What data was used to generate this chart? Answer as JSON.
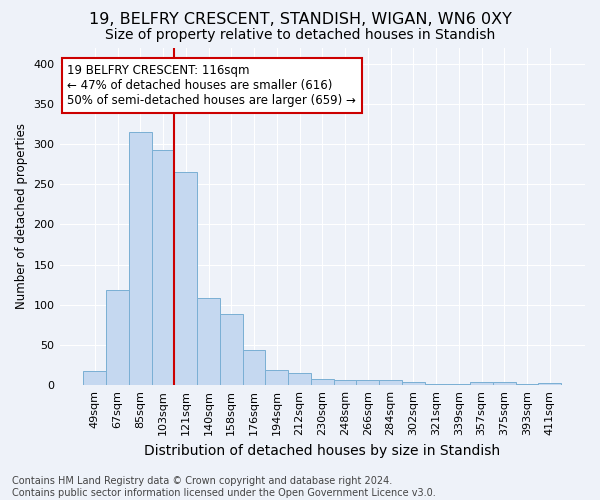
{
  "title1": "19, BELFRY CRESCENT, STANDISH, WIGAN, WN6 0XY",
  "title2": "Size of property relative to detached houses in Standish",
  "xlabel": "Distribution of detached houses by size in Standish",
  "ylabel": "Number of detached properties",
  "categories": [
    "49sqm",
    "67sqm",
    "85sqm",
    "103sqm",
    "121sqm",
    "140sqm",
    "158sqm",
    "176sqm",
    "194sqm",
    "212sqm",
    "230sqm",
    "248sqm",
    "266sqm",
    "284sqm",
    "302sqm",
    "321sqm",
    "339sqm",
    "357sqm",
    "375sqm",
    "393sqm",
    "411sqm"
  ],
  "values": [
    18,
    119,
    315,
    293,
    265,
    109,
    88,
    44,
    19,
    15,
    8,
    7,
    7,
    7,
    4,
    2,
    1,
    4,
    4,
    1,
    3
  ],
  "bar_color": "#c5d8f0",
  "bar_edge_color": "#7aafd4",
  "vline_color": "#cc0000",
  "vline_x_idx": 4,
  "annotation_text": "19 BELFRY CRESCENT: 116sqm\n← 47% of detached houses are smaller (616)\n50% of semi-detached houses are larger (659) →",
  "annotation_box_color": "#ffffff",
  "annotation_box_edge": "#cc0000",
  "footer": "Contains HM Land Registry data © Crown copyright and database right 2024.\nContains public sector information licensed under the Open Government Licence v3.0.",
  "ylim": [
    0,
    420
  ],
  "background_color": "#eef2f9",
  "grid_color": "#ffffff",
  "title1_fontsize": 11.5,
  "title2_fontsize": 10,
  "xlabel_fontsize": 10,
  "ylabel_fontsize": 8.5,
  "tick_fontsize": 8,
  "annot_fontsize": 8.5,
  "footer_fontsize": 7
}
